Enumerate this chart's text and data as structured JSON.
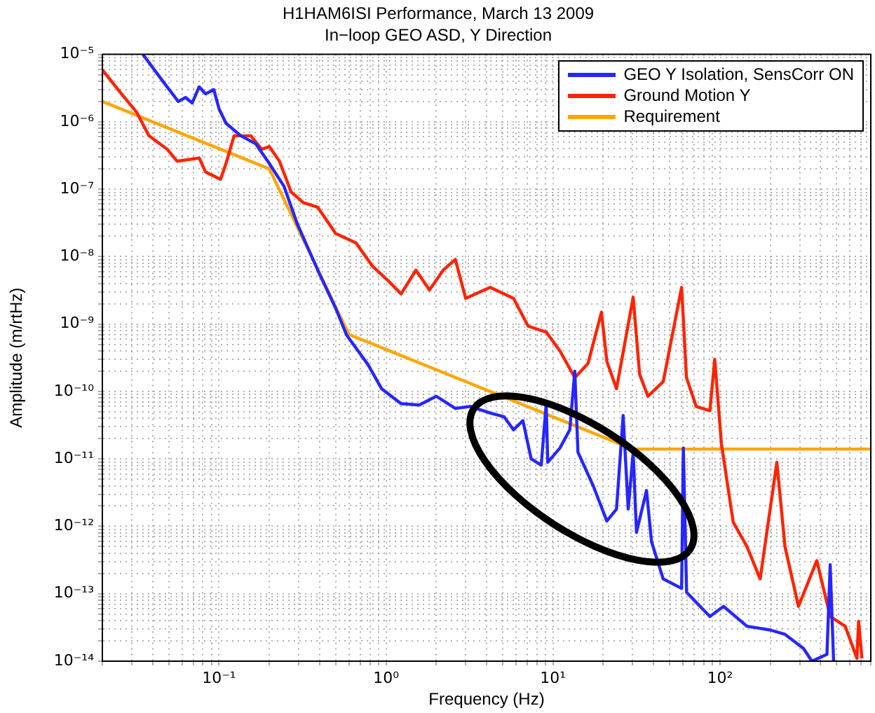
{
  "chart_data": {
    "type": "line",
    "title": "H1HAM6ISI Performance, March 13 2009",
    "subtitle": "In−loop GEO ASD, Y Direction",
    "xlabel": "Frequency (Hz)",
    "ylabel": "Amplitude (m/rtHz)",
    "log": "xy",
    "grid": true,
    "legend": "top right",
    "marker": "none",
    "xlim": [
      0.02,
      800
    ],
    "ylim": [
      1e-14,
      1e-05
    ],
    "xticks": [
      {
        "value": 0.02,
        "label": null
      },
      {
        "value": 0.03,
        "label": null
      },
      {
        "value": 0.04,
        "label": null
      },
      {
        "value": 0.05,
        "label": null
      },
      {
        "value": 0.06,
        "label": null
      },
      {
        "value": 0.07,
        "label": null
      },
      {
        "value": 0.08,
        "label": null
      },
      {
        "value": 0.09,
        "label": null
      },
      {
        "value": 0.1,
        "label": "10⁻¹"
      },
      {
        "value": 0.2,
        "label": null
      },
      {
        "value": 0.3,
        "label": null
      },
      {
        "value": 0.4,
        "label": null
      },
      {
        "value": 0.5,
        "label": null
      },
      {
        "value": 0.6,
        "label": null
      },
      {
        "value": 0.7,
        "label": null
      },
      {
        "value": 0.8,
        "label": null
      },
      {
        "value": 0.9,
        "label": null
      },
      {
        "value": 1,
        "label": "10⁰"
      },
      {
        "value": 2,
        "label": null
      },
      {
        "value": 3,
        "label": null
      },
      {
        "value": 4,
        "label": null
      },
      {
        "value": 5,
        "label": null
      },
      {
        "value": 6,
        "label": null
      },
      {
        "value": 7,
        "label": null
      },
      {
        "value": 8,
        "label": null
      },
      {
        "value": 9,
        "label": null
      },
      {
        "value": 10,
        "label": "10¹"
      },
      {
        "value": 20,
        "label": null
      },
      {
        "value": 30,
        "label": null
      },
      {
        "value": 40,
        "label": null
      },
      {
        "value": 50,
        "label": null
      },
      {
        "value": 60,
        "label": null
      },
      {
        "value": 70,
        "label": null
      },
      {
        "value": 80,
        "label": null
      },
      {
        "value": 90,
        "label": null
      },
      {
        "value": 100,
        "label": "10²"
      },
      {
        "value": 200,
        "label": null
      },
      {
        "value": 300,
        "label": null
      },
      {
        "value": 400,
        "label": null
      },
      {
        "value": 500,
        "label": null
      },
      {
        "value": 600,
        "label": null
      },
      {
        "value": 700,
        "label": null
      },
      {
        "value": 800,
        "label": null
      }
    ],
    "yticks": [
      {
        "value": 1e-14,
        "label": "10⁻¹⁴"
      },
      {
        "value": 2e-14,
        "label": null
      },
      {
        "value": 3e-14,
        "label": null
      },
      {
        "value": 4e-14,
        "label": null
      },
      {
        "value": 5e-14,
        "label": null
      },
      {
        "value": 6e-14,
        "label": null
      },
      {
        "value": 7e-14,
        "label": null
      },
      {
        "value": 8e-14,
        "label": null
      },
      {
        "value": 9e-14,
        "label": null
      },
      {
        "value": 1e-13,
        "label": "10⁻¹³"
      },
      {
        "value": 2e-13,
        "label": null
      },
      {
        "value": 3e-13,
        "label": null
      },
      {
        "value": 4e-13,
        "label": null
      },
      {
        "value": 5e-13,
        "label": null
      },
      {
        "value": 6e-13,
        "label": null
      },
      {
        "value": 7e-13,
        "label": null
      },
      {
        "value": 8e-13,
        "label": null
      },
      {
        "value": 9e-13,
        "label": null
      },
      {
        "value": 1e-12,
        "label": "10⁻¹²"
      },
      {
        "value": 2e-12,
        "label": null
      },
      {
        "value": 3e-12,
        "label": null
      },
      {
        "value": 4e-12,
        "label": null
      },
      {
        "value": 5e-12,
        "label": null
      },
      {
        "value": 6e-12,
        "label": null
      },
      {
        "value": 7e-12,
        "label": null
      },
      {
        "value": 8e-12,
        "label": null
      },
      {
        "value": 9e-12,
        "label": null
      },
      {
        "value": 1e-11,
        "label": "10⁻¹¹"
      },
      {
        "value": 2e-11,
        "label": null
      },
      {
        "value": 3e-11,
        "label": null
      },
      {
        "value": 4e-11,
        "label": null
      },
      {
        "value": 5e-11,
        "label": null
      },
      {
        "value": 6e-11,
        "label": null
      },
      {
        "value": 7e-11,
        "label": null
      },
      {
        "value": 8e-11,
        "label": null
      },
      {
        "value": 9e-11,
        "label": null
      },
      {
        "value": 1e-10,
        "label": "10⁻¹⁰"
      },
      {
        "value": 2e-10,
        "label": null
      },
      {
        "value": 3e-10,
        "label": null
      },
      {
        "value": 4e-10,
        "label": null
      },
      {
        "value": 5e-10,
        "label": null
      },
      {
        "value": 6e-10,
        "label": null
      },
      {
        "value": 7e-10,
        "label": null
      },
      {
        "value": 8e-10,
        "label": null
      },
      {
        "value": 9e-10,
        "label": null
      },
      {
        "value": 1e-09,
        "label": "10⁻⁹"
      },
      {
        "value": 2e-09,
        "label": null
      },
      {
        "value": 3e-09,
        "label": null
      },
      {
        "value": 4e-09,
        "label": null
      },
      {
        "value": 5e-09,
        "label": null
      },
      {
        "value": 6e-09,
        "label": null
      },
      {
        "value": 7e-09,
        "label": null
      },
      {
        "value": 8e-09,
        "label": null
      },
      {
        "value": 9e-09,
        "label": null
      },
      {
        "value": 1e-08,
        "label": "10⁻⁸"
      },
      {
        "value": 2e-08,
        "label": null
      },
      {
        "value": 3e-08,
        "label": null
      },
      {
        "value": 4e-08,
        "label": null
      },
      {
        "value": 5e-08,
        "label": null
      },
      {
        "value": 6e-08,
        "label": null
      },
      {
        "value": 7e-08,
        "label": null
      },
      {
        "value": 8e-08,
        "label": null
      },
      {
        "value": 9e-08,
        "label": null
      },
      {
        "value": 1e-07,
        "label": "10⁻⁷"
      },
      {
        "value": 2e-07,
        "label": null
      },
      {
        "value": 3e-07,
        "label": null
      },
      {
        "value": 4e-07,
        "label": null
      },
      {
        "value": 5e-07,
        "label": null
      },
      {
        "value": 6e-07,
        "label": null
      },
      {
        "value": 7e-07,
        "label": null
      },
      {
        "value": 8e-07,
        "label": null
      },
      {
        "value": 9e-07,
        "label": null
      },
      {
        "value": 1e-06,
        "label": "10⁻⁶"
      },
      {
        "value": 2e-06,
        "label": null
      },
      {
        "value": 3e-06,
        "label": null
      },
      {
        "value": 4e-06,
        "label": null
      },
      {
        "value": 5e-06,
        "label": null
      },
      {
        "value": 6e-06,
        "label": null
      },
      {
        "value": 7e-06,
        "label": null
      },
      {
        "value": 8e-06,
        "label": null
      },
      {
        "value": 9e-06,
        "label": null
      },
      {
        "value": 1e-05,
        "label": "10⁻⁵"
      }
    ],
    "series": [
      {
        "name": "GEO Y Isolation, SensCorr ON",
        "color": "#2626ff",
        "x": [
          0.035,
          0.046,
          0.057,
          0.063,
          0.069,
          0.076,
          0.083,
          0.093,
          0.1,
          0.11,
          0.135,
          0.166,
          0.2,
          0.245,
          0.295,
          0.39,
          0.5,
          0.58,
          0.78,
          0.94,
          1.23,
          1.58,
          2.0,
          2.6,
          3.2,
          4.2,
          5.1,
          5.8,
          6.6,
          7.4,
          8.5,
          9.1,
          9.3,
          11,
          12.6,
          13.5,
          14.1,
          17.4,
          21,
          24,
          26.3,
          28.2,
          30.2,
          31.6,
          36.3,
          38.9,
          45.7,
          58.9,
          60.3,
          63.1,
          87,
          105,
          145,
          200,
          245,
          316,
          355,
          437,
          457,
          479
        ],
        "values": [
          1e-05,
          4e-06,
          2e-06,
          2.3e-06,
          1.9e-06,
          3.3e-06,
          2.6e-06,
          3e-06,
          1.55e-06,
          9.5e-07,
          6.2e-07,
          4.7e-07,
          2.4e-07,
          1.1e-07,
          3e-08,
          6.3e-09,
          1.7e-09,
          6.9e-10,
          2.5e-10,
          1.1e-10,
          6.6e-11,
          6.3e-11,
          8.5e-11,
          5.6e-11,
          6e-11,
          4.8e-11,
          4.2e-11,
          2.7e-11,
          3.7e-11,
          1e-11,
          8.1e-12,
          6.6e-11,
          8.9e-12,
          1.45e-11,
          2.7e-11,
          2e-10,
          1.26e-11,
          4e-12,
          1.2e-12,
          1.8e-12,
          4.4e-11,
          1.8e-12,
          1.26e-11,
          8.1e-13,
          3.4e-12,
          5.9e-13,
          1.66e-13,
          1.2e-13,
          1.45e-11,
          1.05e-13,
          4.6e-14,
          6.5e-14,
          3.3e-14,
          2.9e-14,
          2.5e-14,
          1.55e-14,
          1e-14,
          1.26e-14,
          2.7e-13,
          1e-14
        ]
      },
      {
        "name": "Ground Motion Y",
        "color": "#ff2200",
        "x": [
          0.02,
          0.026,
          0.032,
          0.038,
          0.049,
          0.056,
          0.076,
          0.083,
          0.102,
          0.11,
          0.123,
          0.155,
          0.18,
          0.2,
          0.23,
          0.27,
          0.32,
          0.39,
          0.5,
          0.66,
          0.83,
          1.02,
          1.23,
          1.51,
          1.82,
          2.2,
          2.6,
          3.0,
          4.2,
          5.8,
          7.1,
          9.1,
          11,
          13.5,
          16.2,
          19.5,
          21,
          24,
          30.2,
          33,
          37,
          45.7,
          58.9,
          63,
          72,
          87,
          93,
          102,
          120,
          145,
          174,
          219,
          245,
          295,
          380,
          457,
          562,
          661,
          676,
          708
        ],
        "values": [
          5.9e-06,
          2.6e-06,
          1.4e-06,
          6.2e-07,
          3.9e-07,
          2.6e-07,
          2.9e-07,
          1.8e-07,
          1.4e-07,
          2.4e-07,
          6.2e-07,
          6.2e-07,
          3.9e-07,
          4.3e-07,
          2.6e-07,
          9.1e-08,
          6.3e-08,
          5.4e-08,
          2.2e-08,
          1.6e-08,
          7.2e-09,
          4.5e-09,
          2.8e-09,
          6.3e-09,
          3.2e-09,
          6.3e-09,
          9.1e-09,
          2.4e-09,
          3.5e-09,
          2.4e-09,
          9.3e-10,
          7.6e-10,
          4e-10,
          1.6e-10,
          2.6e-10,
          1.5e-09,
          2.8e-10,
          1.1e-10,
          2.5e-09,
          1.8e-10,
          8.5e-11,
          1.4e-10,
          3.5e-09,
          1.6e-10,
          6e-11,
          5.2e-11,
          3e-10,
          1.66e-11,
          1.15e-12,
          5e-13,
          1.66e-13,
          8.9e-12,
          5e-13,
          6.5e-14,
          3.1e-13,
          4.6e-14,
          3.3e-14,
          1.1e-14,
          3.9e-14,
          1.1e-14
        ]
      },
      {
        "name": "Requirement",
        "color": "#ffa500",
        "x": [
          0.02,
          0.2,
          0.6,
          30,
          800
        ],
        "values": [
          2e-06,
          2e-07,
          7e-10,
          1.4e-11,
          1.4e-11
        ]
      }
    ]
  }
}
